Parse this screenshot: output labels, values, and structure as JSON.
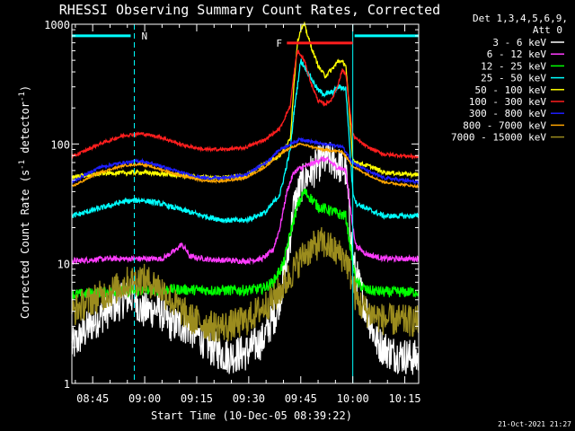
{
  "chart_data": {
    "type": "line",
    "title": "RHESSI Observing Summary Count Rates, Corrected",
    "xlabel": "Start Time (10-Dec-05 08:39:22)",
    "ylabel": "Corrected Count Rate (s",
    "ylabel_sup1": "-1",
    "ylabel_mid": " detector",
    "ylabel_sup2": "-1",
    "ylabel_end": ")",
    "yscale": "log",
    "ylim": [
      1,
      1000
    ],
    "xlim_min": [
      0,
      100
    ],
    "x_ticks": [
      {
        "min": 6,
        "label": "08:45"
      },
      {
        "min": 21,
        "label": "09:00"
      },
      {
        "min": 36,
        "label": "09:15"
      },
      {
        "min": 51,
        "label": "09:30"
      },
      {
        "min": 66,
        "label": "09:45"
      },
      {
        "min": 81,
        "label": "10:00"
      },
      {
        "min": 96,
        "label": "10:15"
      }
    ],
    "y_ticks": [
      {
        "value": 1,
        "label": "1"
      },
      {
        "value": 10,
        "label": "10"
      },
      {
        "value": 100,
        "label": "100"
      },
      {
        "value": 1000,
        "label": "1000"
      }
    ],
    "legend_header": [
      "Det 1,3,4,5,6,9,",
      "Att 0"
    ],
    "series": [
      {
        "name": "3 - 6 keV",
        "color": "#ffffff",
        "noise": 0.35,
        "points": [
          [
            0,
            2
          ],
          [
            5,
            3
          ],
          [
            10,
            4
          ],
          [
            15,
            5
          ],
          [
            18,
            5.5
          ],
          [
            20,
            4
          ],
          [
            25,
            4.2
          ],
          [
            28,
            3.2
          ],
          [
            33,
            3
          ],
          [
            36,
            2.6
          ],
          [
            40,
            2
          ],
          [
            45,
            1.7
          ],
          [
            50,
            1.8
          ],
          [
            55,
            2.3
          ],
          [
            59,
            4
          ],
          [
            62,
            10
          ],
          [
            64,
            30
          ],
          [
            66,
            45
          ],
          [
            68,
            55
          ],
          [
            70,
            62
          ],
          [
            72,
            72
          ],
          [
            74,
            74
          ],
          [
            76,
            70
          ],
          [
            79,
            60
          ],
          [
            81,
            11
          ],
          [
            82,
            8
          ],
          [
            85,
            4
          ],
          [
            88,
            2.2
          ],
          [
            92,
            1.8
          ],
          [
            100,
            1.6
          ]
        ]
      },
      {
        "name": "6 - 12 keV",
        "color": "#ff3cff",
        "noise": 0.05,
        "points": [
          [
            0,
            10.5
          ],
          [
            10,
            11
          ],
          [
            20,
            11
          ],
          [
            26,
            11
          ],
          [
            30,
            13
          ],
          [
            31.5,
            14.5
          ],
          [
            33,
            13
          ],
          [
            34,
            11.5
          ],
          [
            40,
            10.8
          ],
          [
            50,
            10.5
          ],
          [
            55,
            11
          ],
          [
            58,
            13
          ],
          [
            60,
            20
          ],
          [
            62,
            40
          ],
          [
            64,
            58
          ],
          [
            66,
            63
          ],
          [
            68,
            66
          ],
          [
            70,
            70
          ],
          [
            72,
            75
          ],
          [
            74,
            73
          ],
          [
            76,
            65
          ],
          [
            79,
            60
          ],
          [
            81,
            20
          ],
          [
            82,
            14
          ],
          [
            85,
            12
          ],
          [
            90,
            11
          ],
          [
            100,
            11
          ]
        ]
      },
      {
        "name": "12 - 25 keV",
        "color": "#00ff00",
        "noise": 0.1,
        "points": [
          [
            0,
            5.5
          ],
          [
            10,
            5.8
          ],
          [
            20,
            6
          ],
          [
            30,
            6.1
          ],
          [
            40,
            6
          ],
          [
            50,
            6
          ],
          [
            55,
            6.2
          ],
          [
            58,
            7
          ],
          [
            61,
            10
          ],
          [
            63,
            18
          ],
          [
            65,
            30
          ],
          [
            67,
            40
          ],
          [
            69,
            35
          ],
          [
            71,
            30
          ],
          [
            74,
            28
          ],
          [
            77,
            26
          ],
          [
            79,
            25
          ],
          [
            81,
            10
          ],
          [
            82,
            7
          ],
          [
            85,
            6
          ],
          [
            90,
            5.8
          ],
          [
            100,
            5.8
          ]
        ]
      },
      {
        "name": "25 - 50 keV",
        "color": "#00ffff",
        "noise": 0.05,
        "points": [
          [
            0,
            25
          ],
          [
            8,
            29
          ],
          [
            15,
            33
          ],
          [
            20,
            34
          ],
          [
            25,
            32
          ],
          [
            32,
            28
          ],
          [
            38,
            25
          ],
          [
            44,
            23
          ],
          [
            50,
            23
          ],
          [
            56,
            27
          ],
          [
            60,
            38
          ],
          [
            63,
            90
          ],
          [
            64,
            180
          ],
          [
            66,
            500
          ],
          [
            68,
            400
          ],
          [
            71,
            280
          ],
          [
            73,
            260
          ],
          [
            75,
            270
          ],
          [
            77,
            300
          ],
          [
            79,
            290
          ],
          [
            81,
            40
          ],
          [
            82,
            32
          ],
          [
            86,
            28
          ],
          [
            90,
            25
          ],
          [
            100,
            25
          ]
        ]
      },
      {
        "name": "50 - 100 keV",
        "color": "#ffff00",
        "noise": 0.04,
        "points": [
          [
            0,
            53
          ],
          [
            10,
            57
          ],
          [
            20,
            58
          ],
          [
            30,
            55
          ],
          [
            40,
            52
          ],
          [
            50,
            54
          ],
          [
            56,
            70
          ],
          [
            60,
            80
          ],
          [
            63,
            110
          ],
          [
            64,
            300
          ],
          [
            65,
            700
          ],
          [
            66,
            900
          ],
          [
            67,
            1000
          ],
          [
            69,
            650
          ],
          [
            71,
            450
          ],
          [
            73,
            370
          ],
          [
            75,
            420
          ],
          [
            77,
            500
          ],
          [
            79,
            460
          ],
          [
            81,
            75
          ],
          [
            82,
            70
          ],
          [
            86,
            65
          ],
          [
            90,
            58
          ],
          [
            100,
            55
          ]
        ]
      },
      {
        "name": "100 - 300 keV",
        "color": "#ff1e1e",
        "noise": 0.03,
        "points": [
          [
            0,
            78
          ],
          [
            8,
            100
          ],
          [
            15,
            118
          ],
          [
            20,
            122
          ],
          [
            25,
            115
          ],
          [
            32,
            98
          ],
          [
            38,
            90
          ],
          [
            44,
            90
          ],
          [
            50,
            93
          ],
          [
            56,
            110
          ],
          [
            60,
            135
          ],
          [
            63,
            210
          ],
          [
            64,
            380
          ],
          [
            65,
            600
          ],
          [
            67,
            500
          ],
          [
            69,
            320
          ],
          [
            71,
            230
          ],
          [
            73,
            215
          ],
          [
            75,
            235
          ],
          [
            77,
            330
          ],
          [
            78,
            420
          ],
          [
            79,
            380
          ],
          [
            81,
            120
          ],
          [
            82,
            110
          ],
          [
            85,
            95
          ],
          [
            90,
            82
          ],
          [
            100,
            78
          ]
        ]
      },
      {
        "name": "300 - 800 keV",
        "color": "#1e1eff",
        "noise": 0.03,
        "points": [
          [
            0,
            48
          ],
          [
            8,
            64
          ],
          [
            15,
            70
          ],
          [
            20,
            72
          ],
          [
            25,
            66
          ],
          [
            32,
            57
          ],
          [
            38,
            52
          ],
          [
            44,
            52
          ],
          [
            50,
            55
          ],
          [
            56,
            70
          ],
          [
            60,
            90
          ],
          [
            63,
            100
          ],
          [
            66,
            110
          ],
          [
            69,
            105
          ],
          [
            72,
            100
          ],
          [
            75,
            98
          ],
          [
            78,
            95
          ],
          [
            81,
            70
          ],
          [
            85,
            60
          ],
          [
            90,
            52
          ],
          [
            100,
            48
          ]
        ]
      },
      {
        "name": "800 - 7000 keV",
        "color": "#ffa500",
        "noise": 0.02,
        "points": [
          [
            0,
            44
          ],
          [
            8,
            58
          ],
          [
            15,
            66
          ],
          [
            20,
            68
          ],
          [
            25,
            62
          ],
          [
            32,
            54
          ],
          [
            38,
            49
          ],
          [
            44,
            49
          ],
          [
            50,
            52
          ],
          [
            56,
            65
          ],
          [
            60,
            82
          ],
          [
            63,
            93
          ],
          [
            66,
            100
          ],
          [
            69,
            95
          ],
          [
            72,
            90
          ],
          [
            75,
            88
          ],
          [
            78,
            86
          ],
          [
            81,
            65
          ],
          [
            85,
            56
          ],
          [
            90,
            48
          ],
          [
            100,
            44
          ]
        ]
      },
      {
        "name": "7000 - 15000 keV",
        "color": "#9b8c1e",
        "noise": 0.3,
        "points": [
          [
            0,
            4
          ],
          [
            6,
            5
          ],
          [
            12,
            6
          ],
          [
            16,
            7
          ],
          [
            20,
            7.5
          ],
          [
            25,
            6.5
          ],
          [
            30,
            4.5
          ],
          [
            34,
            3.5
          ],
          [
            40,
            3
          ],
          [
            45,
            3
          ],
          [
            50,
            3.3
          ],
          [
            55,
            4.3
          ],
          [
            58,
            5
          ],
          [
            61,
            6.5
          ],
          [
            63,
            8
          ],
          [
            65,
            10
          ],
          [
            67,
            12
          ],
          [
            70,
            14
          ],
          [
            72,
            15
          ],
          [
            74,
            14
          ],
          [
            77,
            12
          ],
          [
            79,
            11
          ],
          [
            81,
            7
          ],
          [
            82,
            5
          ],
          [
            85,
            4
          ],
          [
            90,
            3.4
          ],
          [
            100,
            3.3
          ]
        ]
      }
    ],
    "annotations": {
      "n_marker": {
        "label": "N",
        "color": "#00ffff",
        "value": 800
      },
      "f_marker": {
        "label": "F",
        "color": "#ff1e1e",
        "value": 800,
        "x_start": 62,
        "x_end": 81
      },
      "cyan_verticals_min": [
        18,
        81
      ],
      "cyan_bar_segments": [
        [
          0,
          18
        ],
        [
          100,
          100
        ]
      ]
    },
    "timestamp": "21-Oct-2021 21:27"
  }
}
